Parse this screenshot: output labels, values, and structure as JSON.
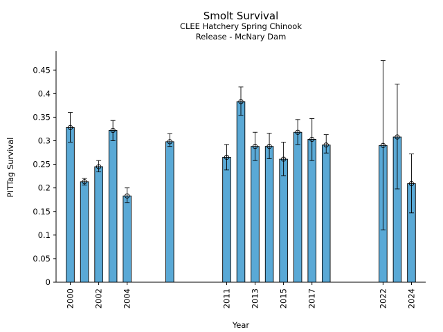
{
  "chart_data": {
    "type": "bar",
    "title": "Smolt Survival",
    "subtitle_lines": [
      "CLEE Hatchery Spring Chinook",
      "Release - McNary Dam"
    ],
    "xlabel": "Year",
    "ylabel": "PITTag Survival",
    "xlim": [
      1999,
      2025
    ],
    "ylim": [
      0,
      0.49
    ],
    "yticks": [
      0,
      0.05,
      0.1,
      0.15,
      0.2,
      0.25,
      0.3,
      0.35,
      0.4,
      0.45
    ],
    "ytick_labels": [
      "0",
      "0.05",
      "0.1",
      "0.15",
      "0.2",
      "0.25",
      "0.3",
      "0.35",
      "0.4",
      "0.45"
    ],
    "xticks": [
      2000,
      2002,
      2004,
      2011,
      2013,
      2015,
      2017,
      2022,
      2024
    ],
    "xtick_labels": [
      "2000",
      "2002",
      "2004",
      "2011",
      "2013",
      "2015",
      "2017",
      "2022",
      "2024"
    ],
    "bar_color": "#5aa9d6",
    "bars": [
      {
        "year": 2000,
        "value": 0.328,
        "err_low": 0.297,
        "err_high": 0.36
      },
      {
        "year": 2001,
        "value": 0.213,
        "err_low": 0.206,
        "err_high": 0.22
      },
      {
        "year": 2002,
        "value": 0.245,
        "err_low": 0.234,
        "err_high": 0.258
      },
      {
        "year": 2003,
        "value": 0.322,
        "err_low": 0.3,
        "err_high": 0.343
      },
      {
        "year": 2004,
        "value": 0.183,
        "err_low": 0.169,
        "err_high": 0.2
      },
      {
        "year": 2007,
        "value": 0.298,
        "err_low": 0.288,
        "err_high": 0.315
      },
      {
        "year": 2011,
        "value": 0.265,
        "err_low": 0.238,
        "err_high": 0.292
      },
      {
        "year": 2012,
        "value": 0.383,
        "err_low": 0.354,
        "err_high": 0.414
      },
      {
        "year": 2013,
        "value": 0.288,
        "err_low": 0.258,
        "err_high": 0.318
      },
      {
        "year": 2014,
        "value": 0.288,
        "err_low": 0.262,
        "err_high": 0.316
      },
      {
        "year": 2015,
        "value": 0.261,
        "err_low": 0.226,
        "err_high": 0.297
      },
      {
        "year": 2016,
        "value": 0.318,
        "err_low": 0.292,
        "err_high": 0.345
      },
      {
        "year": 2017,
        "value": 0.303,
        "err_low": 0.258,
        "err_high": 0.347
      },
      {
        "year": 2018,
        "value": 0.291,
        "err_low": 0.274,
        "err_high": 0.313
      },
      {
        "year": 2022,
        "value": 0.29,
        "err_low": 0.111,
        "err_high": 0.47
      },
      {
        "year": 2023,
        "value": 0.308,
        "err_low": 0.198,
        "err_high": 0.42
      },
      {
        "year": 2024,
        "value": 0.209,
        "err_low": 0.147,
        "err_high": 0.272
      }
    ]
  }
}
